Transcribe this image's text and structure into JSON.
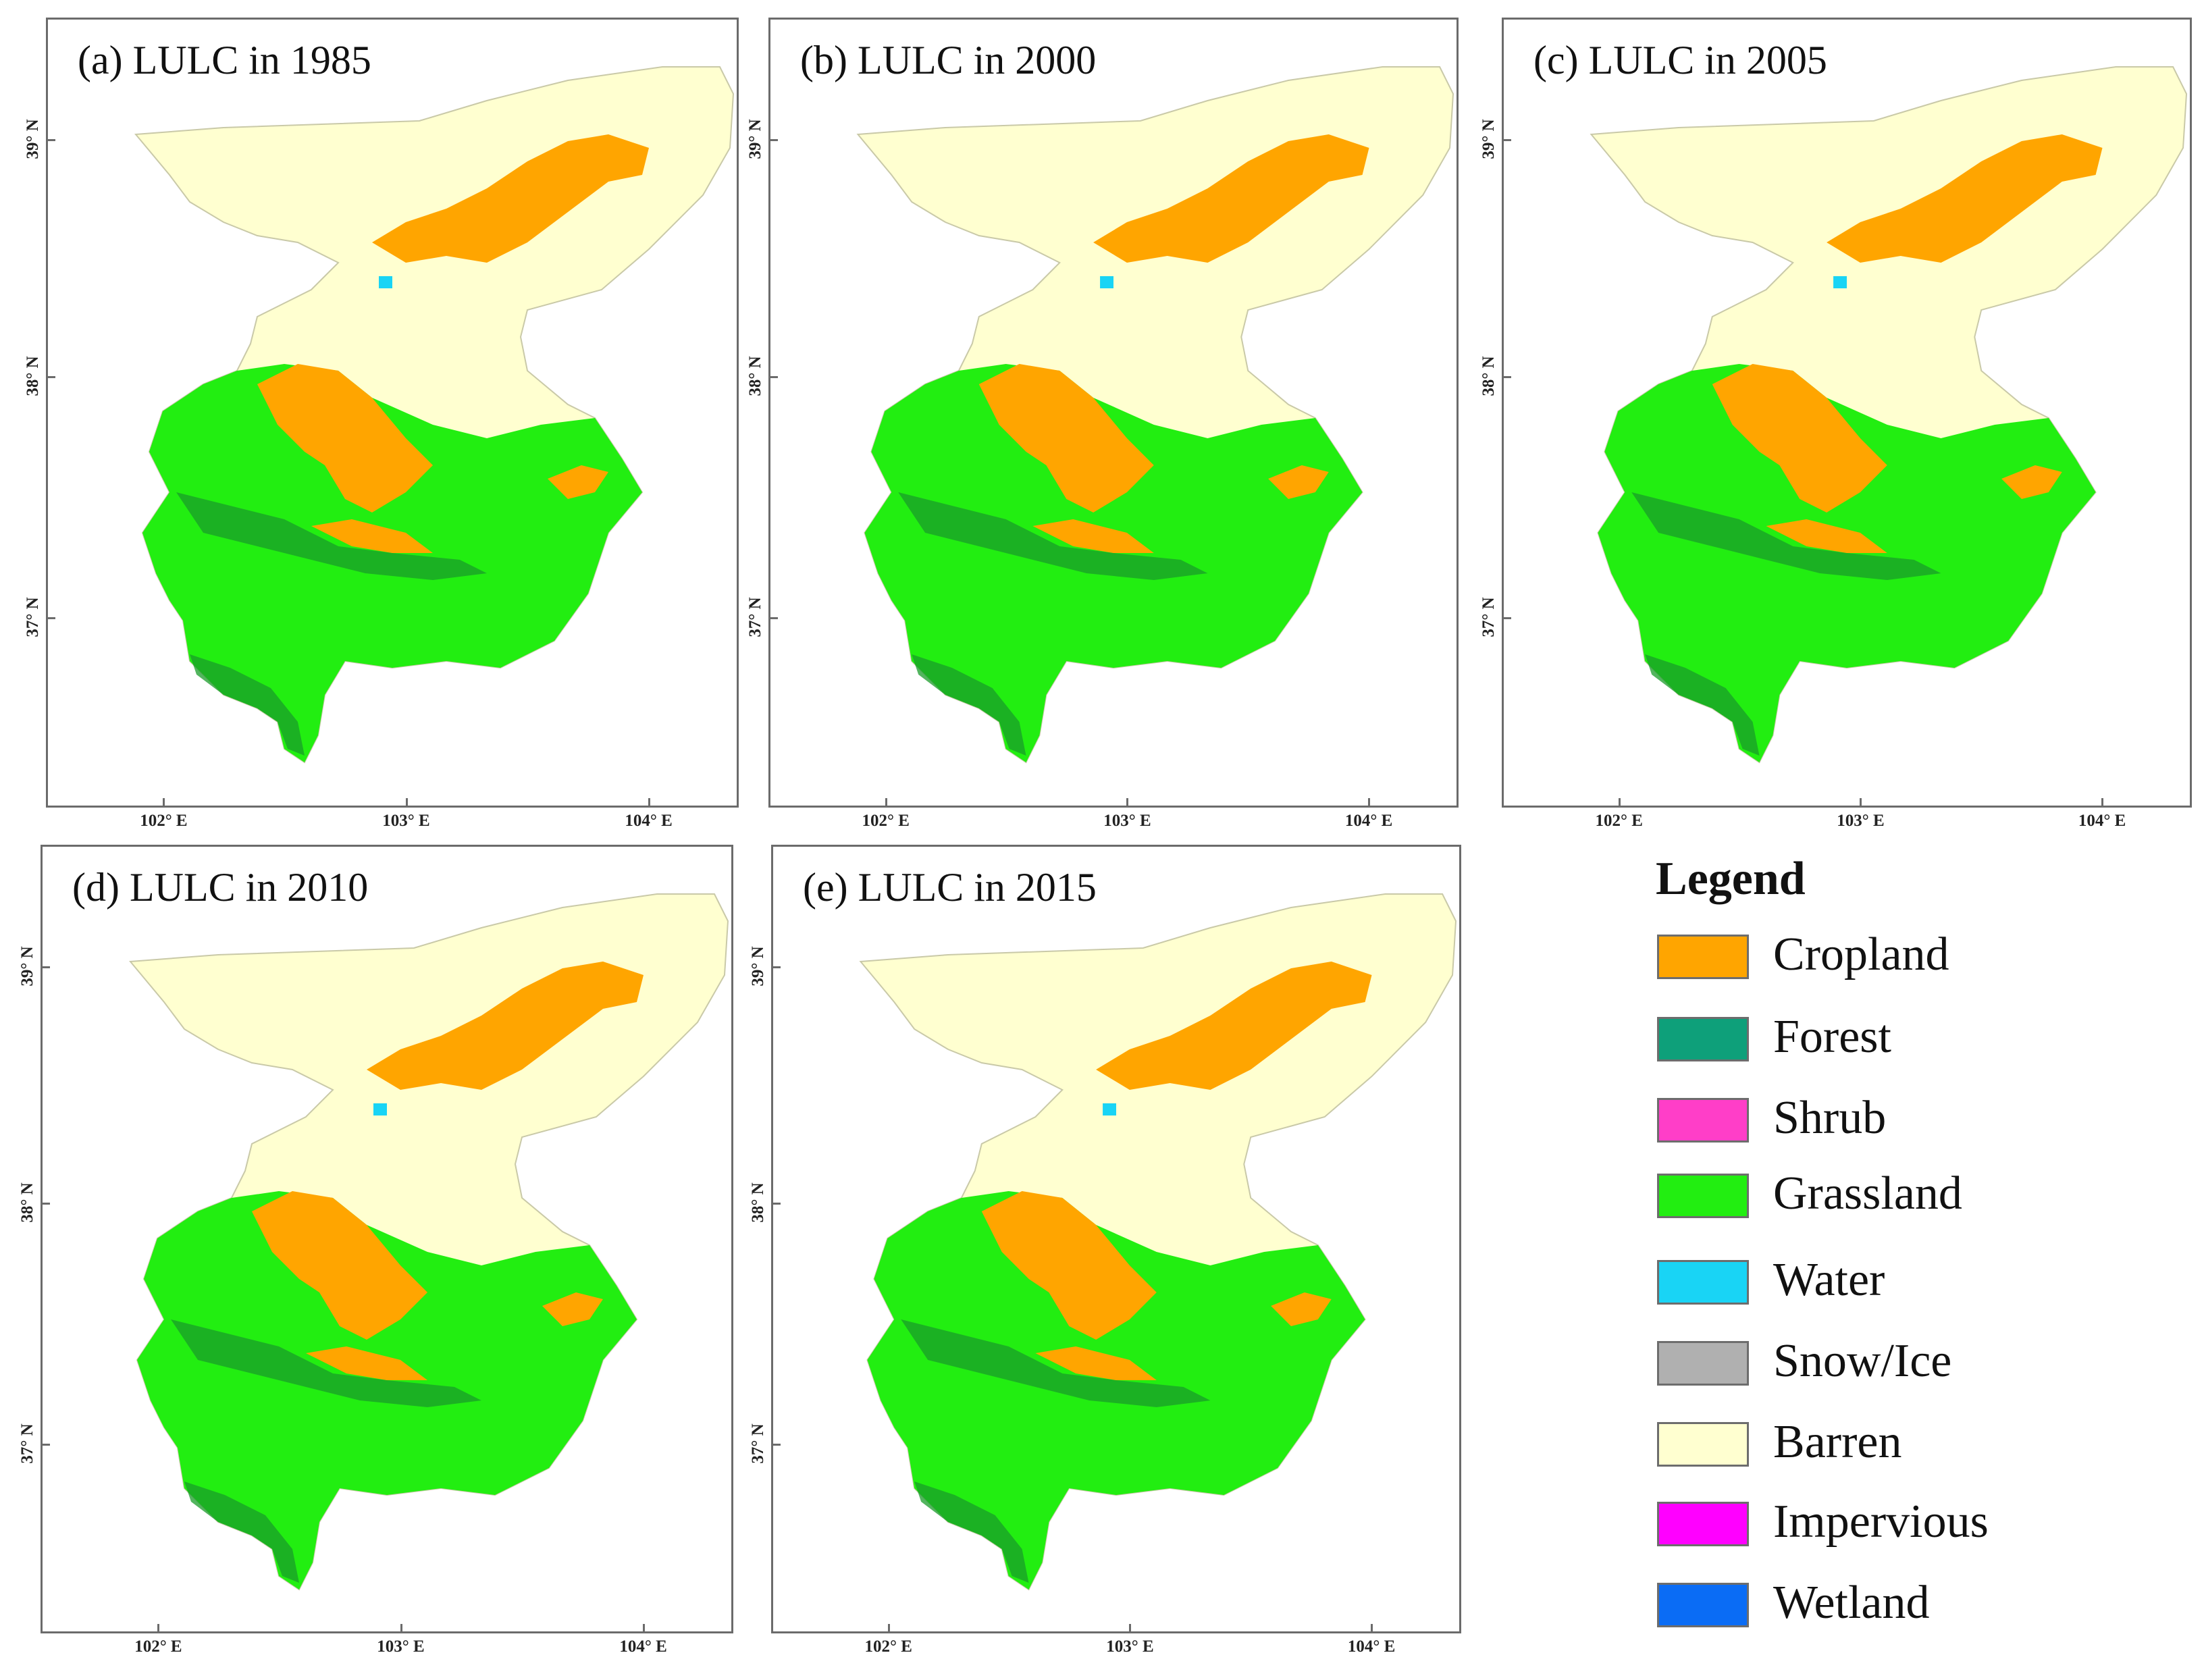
{
  "panels": [
    {
      "id": "a",
      "title": "(a) LULC in 1985"
    },
    {
      "id": "b",
      "title": "(b) LULC in 2000"
    },
    {
      "id": "c",
      "title": "(c) LULC in 2005"
    },
    {
      "id": "d",
      "title": "(d) LULC in 2010"
    },
    {
      "id": "e",
      "title": "(e) LULC in 2015"
    }
  ],
  "axes": {
    "x_ticks": [
      "102° E",
      "103° E",
      "104° E"
    ],
    "y_ticks": [
      "39° N",
      "38° N",
      "37° N"
    ]
  },
  "legend": {
    "title": "Legend",
    "items": [
      {
        "label": "Cropland",
        "color": "#FFA500"
      },
      {
        "label": "Forest",
        "color": "#0EA07A"
      },
      {
        "label": "Shrub",
        "color": "#FF3EC8"
      },
      {
        "label": "Grassland",
        "color": "#22EE11"
      },
      {
        "label": "Water",
        "color": "#19D4F5"
      },
      {
        "label": "Snow/Ice",
        "color": "#B0B0B0"
      },
      {
        "label": "Barren",
        "color": "#FFFFD0"
      },
      {
        "label": "Impervious",
        "color": "#FF00FF"
      },
      {
        "label": "Wetland",
        "color": "#0A6CF5"
      }
    ]
  },
  "colors": {
    "cropland": "#FFA500",
    "forest": "#0EA07A",
    "grassland": "#22EE11",
    "grassland_dark": "#1A9C2A",
    "water": "#19D4F5",
    "barren": "#FFFFD0",
    "frame": "#6B6B6B"
  }
}
